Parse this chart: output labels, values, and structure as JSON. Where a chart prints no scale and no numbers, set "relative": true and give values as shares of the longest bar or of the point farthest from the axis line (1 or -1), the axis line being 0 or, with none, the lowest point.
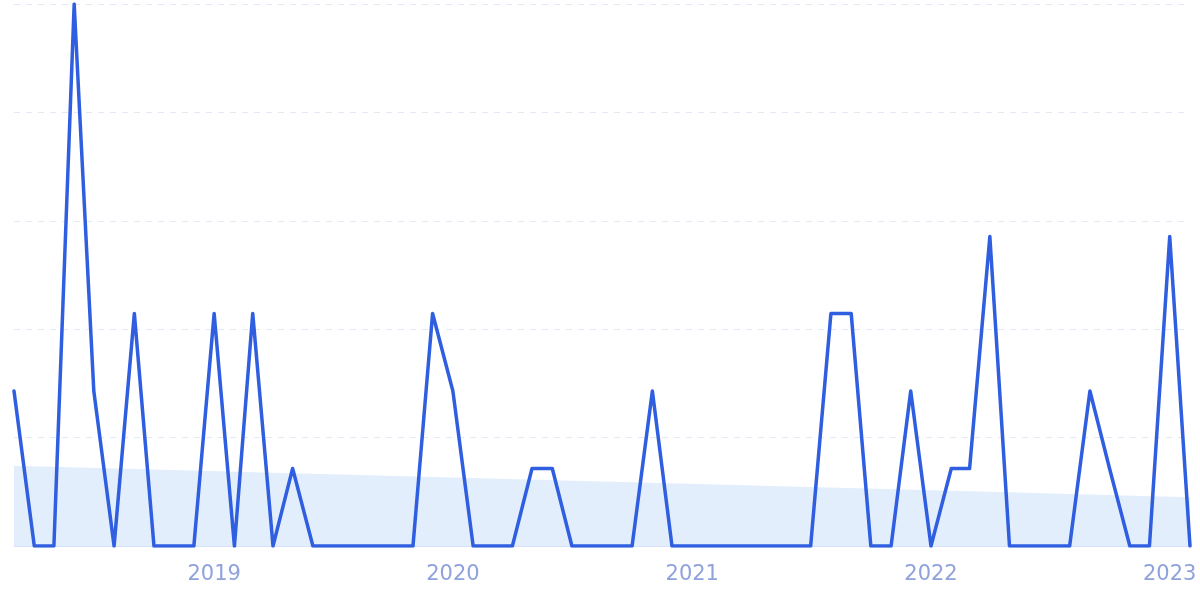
{
  "chart_data": {
    "type": "line",
    "relative": true,
    "grid": "y",
    "marker": "none",
    "line_style": "solid",
    "x": [
      "2018-03",
      "2018-04",
      "2018-05",
      "2018-06",
      "2018-07",
      "2018-08",
      "2018-09",
      "2018-10",
      "2018-11",
      "2018-12",
      "2019-01",
      "2019-02",
      "2019-03",
      "2019-04",
      "2019-05",
      "2019-06",
      "2019-07",
      "2019-08",
      "2019-09",
      "2019-10",
      "2019-11",
      "2019-12",
      "2020-01",
      "2020-02",
      "2020-03",
      "2020-04",
      "2020-05",
      "2020-06",
      "2020-07",
      "2020-08",
      "2020-09",
      "2020-10",
      "2020-11",
      "2020-12",
      "2021-01",
      "2021-02",
      "2021-03",
      "2021-04",
      "2021-05",
      "2021-06",
      "2021-07",
      "2021-08",
      "2021-09",
      "2021-10",
      "2021-11",
      "2021-12",
      "2022-01",
      "2022-02",
      "2022-03",
      "2022-04",
      "2022-05",
      "2022-06",
      "2022-07",
      "2022-08",
      "2022-09",
      "2022-10",
      "2022-11",
      "2022-12",
      "2023-01",
      "2023-02"
    ],
    "xlim": [
      "2018-03",
      "2023-02"
    ],
    "xticks": [
      "2019",
      "2020",
      "2021",
      "2022",
      "2023"
    ],
    "series": [
      {
        "type": "area",
        "color": "#e3eefc",
        "x": [
          "2018-03",
          "2023-02"
        ],
        "values": [
          0.148,
          0.09
        ]
      },
      {
        "color": "#2f5fe0",
        "values": [
          0.286,
          0,
          0,
          1,
          0.286,
          0,
          0.429,
          0,
          0,
          0,
          0.429,
          0,
          0.429,
          0,
          0.143,
          0,
          0,
          0,
          0,
          0,
          0,
          0.429,
          0.286,
          0,
          0,
          0,
          0.143,
          0.143,
          0,
          0,
          0,
          0,
          0.286,
          0,
          0,
          0,
          0,
          0,
          0,
          0,
          0,
          0.429,
          0.429,
          0,
          0,
          0.286,
          0,
          0.143,
          0.143,
          0.571,
          0,
          0,
          0,
          0,
          0.286,
          0.143,
          0,
          0,
          0.571,
          0
        ]
      }
    ]
  }
}
